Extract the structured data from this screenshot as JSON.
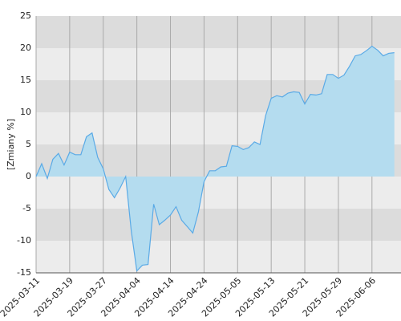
{
  "chart_data": {
    "type": "area",
    "ylabel": "[Zmiany %]",
    "categories": [
      "2025-03-11",
      null,
      null,
      null,
      null,
      null,
      "2025-03-19",
      null,
      null,
      null,
      null,
      null,
      "2025-03-27",
      null,
      null,
      null,
      null,
      null,
      "2025-04-04",
      null,
      null,
      null,
      null,
      null,
      "2025-04-14",
      null,
      null,
      null,
      null,
      null,
      "2025-04-24",
      null,
      null,
      null,
      null,
      null,
      "2025-05-05",
      null,
      null,
      null,
      null,
      null,
      "2025-05-13",
      null,
      null,
      null,
      null,
      null,
      "2025-05-21",
      null,
      null,
      null,
      null,
      null,
      "2025-05-29",
      null,
      null,
      null,
      null,
      null,
      "2025-06-06",
      null,
      null,
      null,
      null
    ],
    "values": [
      0,
      2,
      -0.3,
      2.7,
      3.6,
      1.8,
      3.8,
      3.4,
      3.4,
      6.2,
      6.8,
      3,
      1.2,
      -2,
      -3.3,
      -1.8,
      0,
      -8.5,
      -14.7,
      -13.8,
      -13.7,
      -4.3,
      -7.5,
      -6.8,
      -6,
      -4.7,
      -6.8,
      -7.8,
      -8.8,
      -5.5,
      -0.8,
      0.9,
      0.9,
      1.5,
      1.6,
      4.8,
      4.7,
      4.2,
      4.5,
      5.4,
      5,
      9.5,
      12.2,
      12.6,
      12.4,
      13,
      13.2,
      13.1,
      11.3,
      12.8,
      12.7,
      12.9,
      15.9,
      15.9,
      15.3,
      15.8,
      17.2,
      18.8,
      19,
      19.6,
      20.3,
      19.7,
      18.8,
      19.2,
      19.3
    ],
    "color": "#5aaae6",
    "fill": "#b4dcef",
    "ylim": [
      -15,
      25
    ],
    "yticks": [
      -15,
      -10,
      -5,
      0,
      5,
      10,
      15,
      20,
      25
    ],
    "band_colors": [
      "#ececec",
      "#dcdcdc"
    ],
    "grid": true
  }
}
